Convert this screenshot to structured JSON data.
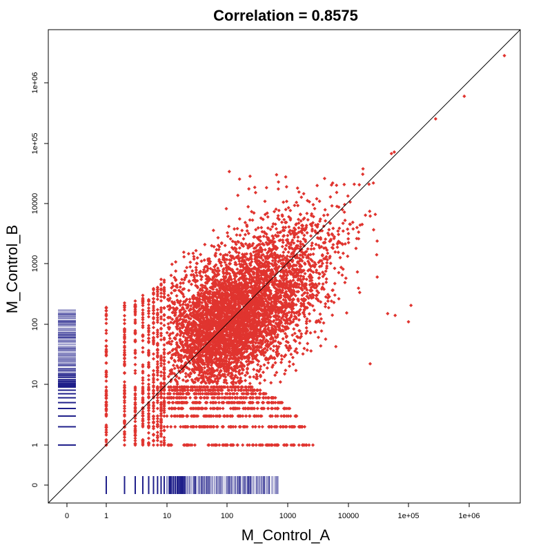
{
  "chart_data": {
    "type": "scatter",
    "title": "Correlation = 0.8575",
    "xlabel": "M_Control_A",
    "ylabel": "M_Control_B",
    "scale": "log10 (count + 1), zero counts shown as rug ticks",
    "x_ticks": [
      "0",
      "1",
      "10",
      "100",
      "1000",
      "10000",
      "1e+05",
      "1e+06"
    ],
    "y_ticks": [
      "0",
      "1",
      "10",
      "100",
      "1000",
      "10000",
      "1e+05",
      "1e+06"
    ],
    "tick_values": [
      0,
      1,
      10,
      100,
      1000,
      10000,
      100000,
      1000000
    ],
    "xlim": [
      0,
      6000000
    ],
    "ylim": [
      0,
      6000000
    ],
    "correlation": 0.8575,
    "reference_line": "y = x",
    "point_color": "#e0342f",
    "rug_color": "#1f1f8a",
    "grid": false,
    "series": [
      {
        "values": [
          {
            "x": 3800000,
            "y": 2800000
          },
          {
            "x": 830000,
            "y": 600000
          },
          {
            "x": 280000,
            "y": 255000
          },
          {
            "x": 58000,
            "y": 72000
          },
          {
            "x": 52000,
            "y": 68000
          },
          {
            "x": 26000,
            "y": 22000
          },
          {
            "x": 28000,
            "y": 6600
          },
          {
            "x": 22000,
            "y": 21000
          },
          {
            "x": 110000,
            "y": 205
          },
          {
            "x": 60000,
            "y": 140
          },
          {
            "x": 100000,
            "y": 110
          },
          {
            "x": 45000,
            "y": 150
          },
          {
            "x": 23000,
            "y": 22
          },
          {
            "x": 5500,
            "y": 22000
          },
          {
            "x": 700,
            "y": 17500
          },
          {
            "x": 20,
            "y": 750
          },
          {
            "x": 8,
            "y": 550
          },
          {
            "x": 2,
            "y": 200
          },
          {
            "x": 1,
            "y": 1
          },
          {
            "x": 2600,
            "y": 1
          },
          {
            "x": 1200,
            "y": 2
          },
          {
            "x": 1,
            "y": 190
          }
        ]
      }
    ],
    "discrete_rows_y": [
      1,
      2,
      3,
      4,
      5,
      6,
      7,
      8,
      9
    ],
    "discrete_cols_x": [
      1,
      2,
      3,
      4,
      5,
      6,
      7,
      8,
      9
    ],
    "rug_x_zero_counts": [
      0,
      1,
      2,
      3,
      4,
      5,
      6,
      7,
      8,
      9,
      10,
      12,
      15,
      20,
      30,
      50,
      100,
      200,
      500,
      700
    ],
    "rug_y_zero_counts": [
      1,
      2,
      3,
      4,
      5,
      6,
      7,
      8,
      9,
      10,
      12,
      15,
      20,
      30,
      50,
      100,
      170
    ]
  }
}
